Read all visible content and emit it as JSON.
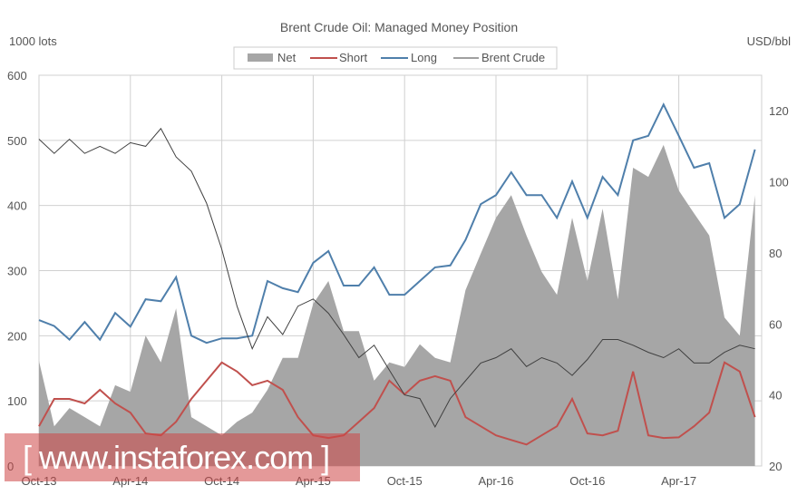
{
  "chart_data": {
    "type": "area+line",
    "title": "Brent Crude Oil: Managed Money Position",
    "ylabel_left": "1000 lots",
    "ylabel_right": "USD/bbl",
    "ylim_left": [
      0,
      600
    ],
    "ylim_right": [
      20,
      130
    ],
    "yticks_left": [
      "0",
      "100",
      "200",
      "300",
      "400",
      "500",
      "600"
    ],
    "yticks_right": [
      "20",
      "40",
      "60",
      "80",
      "100",
      "120"
    ],
    "xtick_labels": [
      "Oct-13",
      "Apr-14",
      "Oct-14",
      "Apr-15",
      "Oct-15",
      "Apr-16",
      "Oct-16",
      "Apr-17"
    ],
    "grid": true,
    "legend_position": "top",
    "x": [
      "2013-10",
      "2013-11",
      "2013-12",
      "2014-01",
      "2014-02",
      "2014-03",
      "2014-04",
      "2014-05",
      "2014-06",
      "2014-07",
      "2014-08",
      "2014-09",
      "2014-10",
      "2014-11",
      "2014-12",
      "2015-01",
      "2015-02",
      "2015-03",
      "2015-04",
      "2015-05",
      "2015-06",
      "2015-07",
      "2015-08",
      "2015-09",
      "2015-10",
      "2015-11",
      "2015-12",
      "2016-01",
      "2016-02",
      "2016-03",
      "2016-04",
      "2016-05",
      "2016-06",
      "2016-07",
      "2016-08",
      "2016-09",
      "2016-10",
      "2016-11",
      "2016-12",
      "2017-01",
      "2017-02",
      "2017-03",
      "2017-04",
      "2017-05",
      "2017-06",
      "2017-07",
      "2017-08",
      "2017-09"
    ],
    "series": [
      {
        "name": "Net",
        "type": "area",
        "axis": "left",
        "color": "#a6a6a6",
        "values": [
          161,
          61,
          89,
          75,
          61,
          124,
          114,
          200,
          159,
          242,
          75,
          61,
          47,
          68,
          82,
          117,
          166,
          166,
          249,
          284,
          207,
          207,
          131,
          159,
          152,
          187,
          166,
          159,
          270,
          326,
          381,
          416,
          354,
          298,
          263,
          381,
          284,
          395,
          256,
          458,
          444,
          493,
          423,
          388,
          354,
          228,
          200,
          416
        ]
      },
      {
        "name": "Short",
        "type": "line",
        "axis": "left",
        "color": "#c0504d",
        "values": [
          61,
          103,
          103,
          96,
          117,
          96,
          82,
          50,
          47,
          68,
          103,
          131,
          159,
          145,
          124,
          131,
          117,
          75,
          47,
          43,
          47,
          68,
          89,
          131,
          110,
          131,
          138,
          131,
          75,
          61,
          47,
          40,
          33,
          47,
          61,
          103,
          50,
          47,
          54,
          145,
          47,
          43,
          44,
          61,
          82,
          159,
          145,
          75
        ]
      },
      {
        "name": "Long",
        "type": "line",
        "axis": "left",
        "color": "#4f7fab",
        "values": [
          224,
          215,
          194,
          221,
          194,
          235,
          214,
          256,
          253,
          290,
          200,
          189,
          196,
          196,
          200,
          284,
          273,
          267,
          312,
          330,
          277,
          277,
          305,
          263,
          263,
          284,
          305,
          308,
          347,
          402,
          416,
          451,
          416,
          416,
          381,
          437,
          381,
          444,
          416,
          500,
          507,
          555,
          507,
          458,
          465,
          381,
          402,
          486
        ]
      },
      {
        "name": "Brent Crude",
        "type": "line",
        "axis": "right",
        "color": "#404040",
        "values": [
          112,
          108,
          112,
          108,
          110,
          108,
          111,
          110,
          115,
          107,
          103,
          94,
          81,
          65,
          53,
          62,
          57,
          65,
          67,
          63,
          57,
          50.5,
          54,
          47,
          40,
          39,
          31,
          39,
          44,
          49,
          50.5,
          53,
          48,
          50.5,
          49,
          45.5,
          50,
          55.6,
          55.6,
          54,
          52,
          50.5,
          53,
          49,
          49,
          52,
          54,
          53
        ]
      }
    ]
  },
  "watermark": {
    "text": "[ www.instaforex.com ]"
  }
}
